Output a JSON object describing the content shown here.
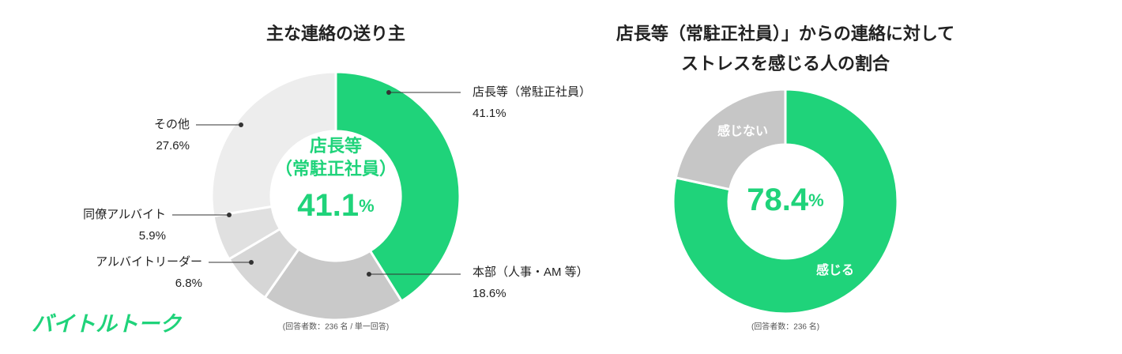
{
  "logo": "バイトルトーク",
  "chart_data": [
    {
      "type": "donut",
      "title": [
        "主な連絡の送り主"
      ],
      "categories": [
        "店長等（常駐正社員）",
        "本部（人事・AM 等）",
        "アルバイトリーダー",
        "同僚アルバイト",
        "その他"
      ],
      "values": [
        41.1,
        18.6,
        6.8,
        5.9,
        27.6
      ],
      "value_labels": [
        "41.1%",
        "18.6%",
        "6.8%",
        "5.9%",
        "27.6%"
      ],
      "colors": [
        "#1fd37a",
        "#c9c9c9",
        "#d6d6d6",
        "#e0e0e0",
        "#ededed"
      ],
      "center_label": [
        "店長等",
        "（常駐正社員）"
      ],
      "center_unit": "%",
      "note": "(回答者数：236 名 / 単一回答)"
    },
    {
      "type": "donut",
      "title": [
        "店長等（常駐正社員）」からの連絡に対して",
        "ストレスを感じる人の割合"
      ],
      "categories": [
        "感じる",
        "感じない"
      ],
      "values": [
        78.4,
        21.6
      ],
      "colors": [
        "#1fd37a",
        "#c6c6c6"
      ],
      "center_unit": "%",
      "note": "(回答者数：236 名)"
    }
  ]
}
